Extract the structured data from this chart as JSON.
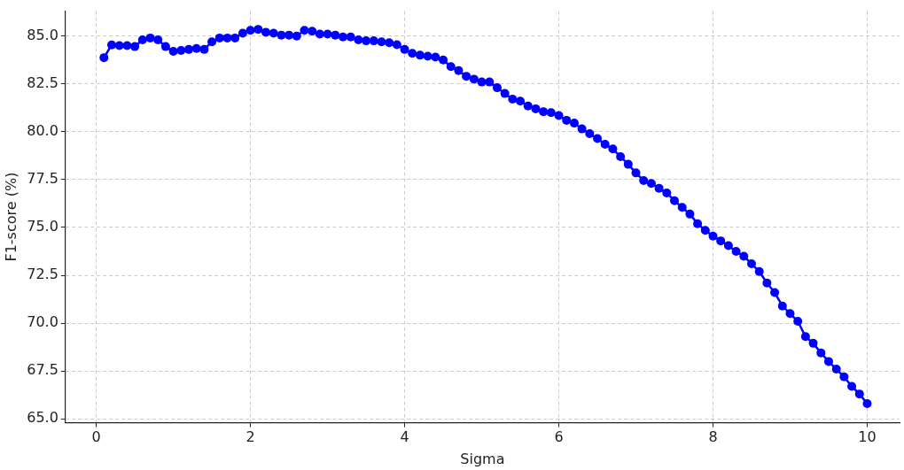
{
  "chart_data": {
    "type": "line",
    "xlabel": "Sigma",
    "ylabel": "F1-score (%)",
    "x": [
      0.1,
      0.2,
      0.3,
      0.4,
      0.5,
      0.6,
      0.7,
      0.8,
      0.9,
      1.0,
      1.1,
      1.2,
      1.3,
      1.4,
      1.5,
      1.6,
      1.7,
      1.8,
      1.9,
      2.0,
      2.1,
      2.2,
      2.3,
      2.4,
      2.5,
      2.6,
      2.7,
      2.8,
      2.9,
      3.0,
      3.1,
      3.2,
      3.3,
      3.4,
      3.5,
      3.6,
      3.7,
      3.8,
      3.9,
      4.0,
      4.1,
      4.2,
      4.3,
      4.4,
      4.5,
      4.6,
      4.7,
      4.8,
      4.9,
      5.0,
      5.1,
      5.2,
      5.3,
      5.4,
      5.5,
      5.6,
      5.7,
      5.8,
      5.9,
      6.0,
      6.1,
      6.2,
      6.3,
      6.4,
      6.5,
      6.6,
      6.7,
      6.8,
      6.9,
      7.0,
      7.1,
      7.2,
      7.3,
      7.4,
      7.5,
      7.6,
      7.7,
      7.8,
      7.9,
      8.0,
      8.1,
      8.2,
      8.3,
      8.4,
      8.5,
      8.6,
      8.7,
      8.8,
      8.9,
      9.0,
      9.1,
      9.2,
      9.3,
      9.4,
      9.5,
      9.6,
      9.7,
      9.8,
      9.9,
      10.0
    ],
    "series": [
      {
        "color": "#0000ff",
        "values": [
          83.87,
          84.54,
          84.5,
          84.5,
          84.45,
          84.8,
          84.9,
          84.8,
          84.45,
          84.2,
          84.25,
          84.3,
          84.35,
          84.3,
          84.7,
          84.9,
          84.9,
          84.9,
          85.15,
          85.3,
          85.35,
          85.2,
          85.15,
          85.05,
          85.05,
          85.0,
          85.3,
          85.25,
          85.1,
          85.1,
          85.05,
          84.95,
          84.95,
          84.8,
          84.75,
          84.75,
          84.7,
          84.65,
          84.55,
          84.3,
          84.1,
          84.0,
          83.95,
          83.9,
          83.75,
          83.4,
          83.2,
          82.9,
          82.75,
          82.6,
          82.6,
          82.3,
          82.0,
          81.7,
          81.6,
          81.35,
          81.2,
          81.05,
          81.0,
          80.85,
          80.6,
          80.45,
          80.15,
          79.9,
          79.65,
          79.35,
          79.1,
          78.7,
          78.3,
          77.85,
          77.45,
          77.3,
          77.05,
          76.8,
          76.4,
          76.05,
          75.7,
          75.2,
          74.85,
          74.55,
          74.3,
          74.05,
          73.75,
          73.5,
          73.1,
          72.7,
          72.1,
          71.6,
          70.9,
          70.5,
          70.1,
          69.3,
          68.95,
          68.45,
          68.0,
          67.6,
          67.2,
          66.7,
          66.3,
          65.8
        ]
      }
    ],
    "xlim": [
      -0.4,
      10.42
    ],
    "ylim": [
      64.8,
      86.3
    ],
    "xticks": [
      0,
      2,
      4,
      6,
      8,
      10
    ],
    "yticks": [
      {
        "value": 65,
        "label": "65.0"
      },
      67.5,
      {
        "value": 70,
        "label": "70.0"
      },
      72.5,
      {
        "value": 75,
        "label": "75.0"
      },
      77.5,
      {
        "value": 80,
        "label": "80.0"
      },
      82.5,
      {
        "value": 85,
        "label": "85.0"
      }
    ],
    "grid": true,
    "legend": false,
    "marker": "circle",
    "line_style": "solid"
  }
}
